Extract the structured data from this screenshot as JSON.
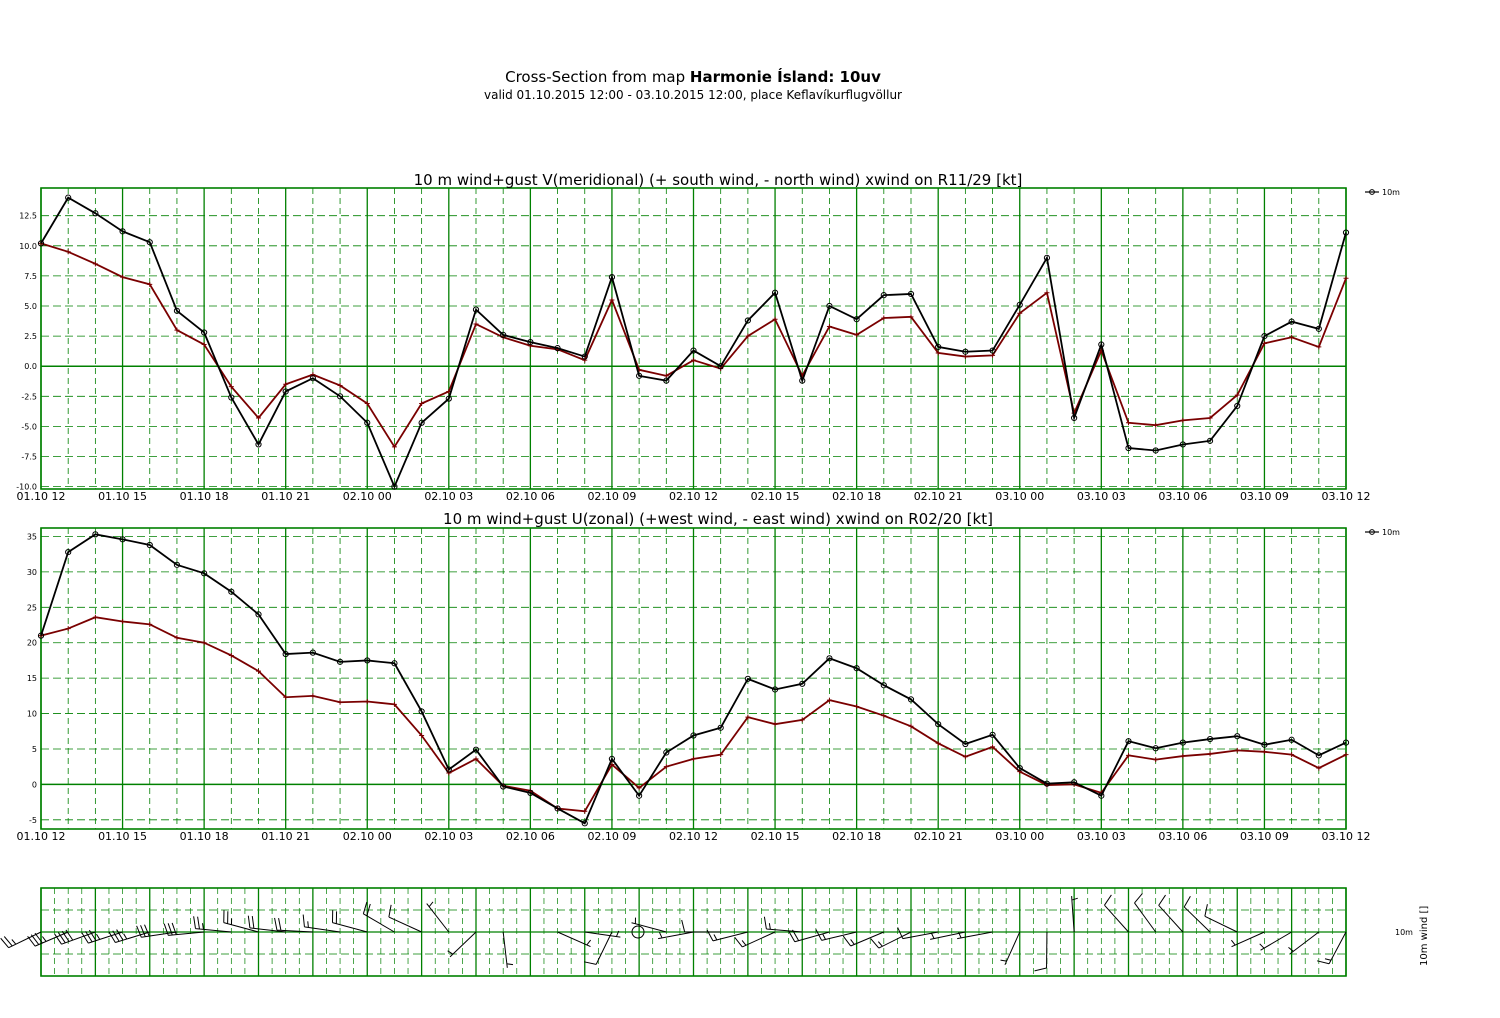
{
  "header": {
    "title_prefix": "Cross-Section from map ",
    "title_bold": "Harmonie Ísland: 10uv",
    "subtitle": "valid 01.10.2015 12:00 - 03.10.2015 12:00, place Keflavíkurflugvöllur"
  },
  "colors": {
    "grid": "#008000",
    "wind": "#000000",
    "gust": "#7a0000"
  },
  "chart_data": [
    {
      "type": "line",
      "title": "10 m wind+gust V(meridional) (+ south wind, - north wind) xwind on R11/29 [kt]",
      "x_hours": [
        0,
        1,
        2,
        3,
        4,
        5,
        6,
        7,
        8,
        9,
        10,
        11,
        12,
        13,
        14,
        15,
        16,
        17,
        18,
        19,
        20,
        21,
        22,
        23,
        24,
        25,
        26,
        27,
        28,
        29,
        30,
        31,
        32,
        33,
        34,
        35,
        36,
        37,
        38,
        39,
        40,
        41,
        42,
        43,
        44,
        45,
        46,
        47,
        48
      ],
      "x_tick_labels": [
        "01.10 12",
        "01.10 15",
        "01.10 18",
        "01.10 21",
        "02.10 00",
        "02.10 03",
        "02.10 06",
        "02.10 09",
        "02.10 12",
        "02.10 15",
        "02.10 18",
        "02.10 21",
        "03.10 00",
        "03.10 03",
        "03.10 06",
        "03.10 09",
        "03.10 12"
      ],
      "y_ticks": [
        "-10.0",
        "-7.5",
        "-5.0",
        "-2.5",
        "0.0",
        "2.5",
        "5.0",
        "7.5",
        "10.0",
        "12.5"
      ],
      "ylim": [
        -10.2,
        14.8
      ],
      "legend": "10m",
      "series": [
        {
          "name": "10m wind",
          "values": [
            10.2,
            14.0,
            12.7,
            11.2,
            10.3,
            4.6,
            2.8,
            -2.6,
            -6.5,
            -2.1,
            -1.0,
            -2.5,
            -4.7,
            -10.0,
            -4.7,
            -2.7,
            4.7,
            2.6,
            2.0,
            1.5,
            0.8,
            7.4,
            -0.8,
            -1.2,
            1.3,
            0.0,
            3.8,
            6.1,
            -1.2,
            5.0,
            3.9,
            5.9,
            6.0,
            1.6,
            1.2,
            1.3,
            5.1,
            9.0,
            -4.3,
            1.8,
            -6.8,
            -7.0,
            -6.5,
            -6.2,
            -3.3,
            2.5,
            3.7,
            3.1,
            11.1
          ]
        },
        {
          "name": "10m gust",
          "values": [
            10.2,
            9.5,
            8.5,
            7.4,
            6.8,
            3.0,
            1.8,
            -1.7,
            -4.3,
            -1.5,
            -0.7,
            -1.6,
            -3.1,
            -6.7,
            -3.1,
            -2.1,
            3.5,
            2.4,
            1.7,
            1.4,
            0.5,
            5.5,
            -0.3,
            -0.8,
            0.5,
            -0.2,
            2.5,
            3.9,
            -0.8,
            3.3,
            2.6,
            4.0,
            4.1,
            1.1,
            0.8,
            0.9,
            4.4,
            6.1,
            -3.9,
            1.3,
            -4.7,
            -4.9,
            -4.5,
            -4.3,
            -2.4,
            1.9,
            2.4,
            1.6,
            7.3
          ]
        }
      ]
    },
    {
      "type": "line",
      "title": "10 m wind+gust U(zonal) (+west wind, - east wind) xwind on R02/20 [kt]",
      "x_hours": [
        0,
        1,
        2,
        3,
        4,
        5,
        6,
        7,
        8,
        9,
        10,
        11,
        12,
        13,
        14,
        15,
        16,
        17,
        18,
        19,
        20,
        21,
        22,
        23,
        24,
        25,
        26,
        27,
        28,
        29,
        30,
        31,
        32,
        33,
        34,
        35,
        36,
        37,
        38,
        39,
        40,
        41,
        42,
        43,
        44,
        45,
        46,
        47,
        48
      ],
      "x_tick_labels": [
        "01.10 12",
        "01.10 15",
        "01.10 18",
        "01.10 21",
        "02.10 00",
        "02.10 03",
        "02.10 06",
        "02.10 09",
        "02.10 12",
        "02.10 15",
        "02.10 18",
        "02.10 21",
        "03.10 00",
        "03.10 03",
        "03.10 06",
        "03.10 09",
        "03.10 12"
      ],
      "y_ticks": [
        "-5",
        "0",
        "5",
        "10",
        "15",
        "20",
        "25",
        "30",
        "35"
      ],
      "ylim": [
        -6.3,
        36.2
      ],
      "legend": "10m",
      "series": [
        {
          "name": "10m wind",
          "values": [
            21.0,
            32.8,
            35.3,
            34.6,
            33.8,
            31.0,
            29.8,
            27.2,
            24.0,
            18.4,
            18.6,
            17.3,
            17.5,
            17.1,
            10.3,
            2.1,
            4.9,
            -0.3,
            -1.2,
            -3.4,
            -5.5,
            3.6,
            -1.6,
            4.5,
            6.9,
            8.0,
            14.9,
            13.4,
            14.2,
            17.8,
            16.4,
            14.0,
            12.0,
            8.5,
            5.7,
            7.0,
            2.3,
            0.1,
            0.3,
            -1.6,
            6.1,
            5.1,
            5.9,
            6.4,
            6.8,
            5.6,
            6.3,
            4.1,
            5.9
          ]
        },
        {
          "name": "10m gust",
          "values": [
            21.0,
            22.0,
            23.6,
            23.0,
            22.6,
            20.7,
            20.0,
            18.2,
            16.0,
            12.3,
            12.5,
            11.6,
            11.7,
            11.3,
            6.9,
            1.6,
            3.6,
            -0.2,
            -0.9,
            -3.4,
            -3.8,
            2.8,
            -0.5,
            2.5,
            3.6,
            4.2,
            9.5,
            8.5,
            9.1,
            11.9,
            11.0,
            9.7,
            8.2,
            5.8,
            3.9,
            5.3,
            1.8,
            -0.1,
            0.0,
            -1.2,
            4.1,
            3.5,
            4.0,
            4.3,
            4.8,
            4.6,
            4.2,
            2.3,
            4.2
          ]
        }
      ]
    }
  ],
  "barbs_panel": {
    "row_label": "10m",
    "axis_label": "10m wind []",
    "calm_symbol": "calm-circle"
  }
}
